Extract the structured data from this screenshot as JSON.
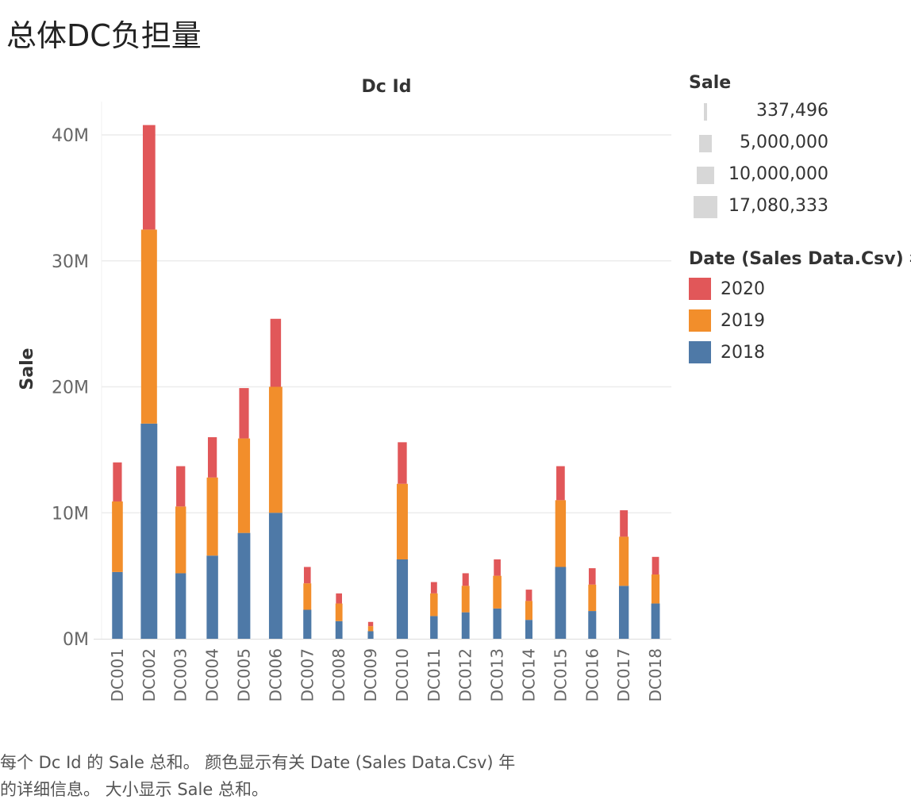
{
  "page": {
    "title": "总体DC负担量",
    "caption_line1": "每个 Dc Id 的 Sale 总和。 颜色显示有关 Date (Sales Data.Csv) 年",
    "caption_line2": "的详细信息。 大小显示 Sale 总和。"
  },
  "legend": {
    "size": {
      "title": "Sale",
      "items": [
        {
          "label": "337,496",
          "value": 337496
        },
        {
          "label": "5,000,000",
          "value": 5000000
        },
        {
          "label": "10,000,000",
          "value": 10000000
        },
        {
          "label": "17,080,333",
          "value": 17080333
        }
      ]
    },
    "color": {
      "title": "Date (Sales Data.Csv) 年",
      "items": [
        {
          "label": "2020",
          "color": "#e15759"
        },
        {
          "label": "2019",
          "color": "#f28e2b"
        },
        {
          "label": "2018",
          "color": "#4e79a7"
        }
      ]
    }
  },
  "chart_data": {
    "type": "bar",
    "stacked": true,
    "size_encoding": "Sale",
    "title": "",
    "column_header": "Dc Id",
    "ylabel": "Sale",
    "xlabel": "",
    "ylim": [
      0,
      42000000
    ],
    "yticks": [
      0,
      10000000,
      20000000,
      30000000,
      40000000
    ],
    "ytick_labels": [
      "0M",
      "10M",
      "20M",
      "30M",
      "40M"
    ],
    "grid": true,
    "categories": [
      "DC001",
      "DC002",
      "DC003",
      "DC004",
      "DC005",
      "DC006",
      "DC007",
      "DC008",
      "DC009",
      "DC010",
      "DC011",
      "DC012",
      "DC013",
      "DC014",
      "DC015",
      "DC016",
      "DC017",
      "DC018"
    ],
    "series": [
      {
        "name": "2018",
        "color": "#4e79a7",
        "values": [
          5300000,
          17080333,
          5200000,
          6600000,
          8400000,
          10000000,
          2300000,
          1400000,
          600000,
          6300000,
          1800000,
          2100000,
          2400000,
          1500000,
          5700000,
          2200000,
          4200000,
          2800000
        ]
      },
      {
        "name": "2019",
        "color": "#f28e2b",
        "values": [
          5600000,
          15400000,
          5300000,
          6200000,
          7500000,
          10000000,
          2100000,
          1400000,
          400000,
          6000000,
          1800000,
          2100000,
          2600000,
          1500000,
          5300000,
          2100000,
          3900000,
          2300000
        ]
      },
      {
        "name": "2020",
        "color": "#e15759",
        "values": [
          3100000,
          8300000,
          3200000,
          3200000,
          4000000,
          5400000,
          1300000,
          800000,
          337496,
          3300000,
          900000,
          1000000,
          1300000,
          900000,
          2700000,
          1300000,
          2100000,
          1400000
        ]
      }
    ]
  }
}
